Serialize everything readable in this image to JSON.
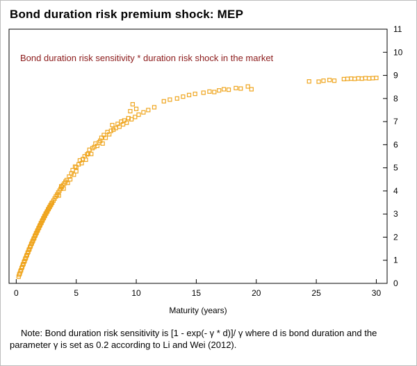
{
  "page": {
    "title": "Bond duration risk premium shock: MEP"
  },
  "note": {
    "text": "Note: Bond duration risk sensitivity is [1 - exp(- γ * d)]/ γ  where d is bond duration and the parameter γ is set as 0.2 according to Li and Wei (2012)."
  },
  "chart_data": {
    "type": "scatter",
    "title": "Bond duration risk premium shock: MEP",
    "annotation": "Bond duration risk sensitivity * duration risk shock in the market",
    "annotation_color": "#8b1a1a",
    "xlabel": "Maturity (years)",
    "ylabel": "",
    "xlim": [
      -0.6,
      30.9
    ],
    "ylim": [
      0,
      11
    ],
    "x_ticks": [
      0,
      5,
      10,
      15,
      20,
      25,
      30
    ],
    "y_ticks": [
      0,
      1,
      2,
      3,
      4,
      5,
      6,
      7,
      8,
      9,
      10,
      11
    ],
    "grid": false,
    "legend": "none",
    "marker": "open-square",
    "marker_color": "#efa51e",
    "axis_color": "#000000",
    "points": [
      [
        0.2,
        0.29
      ],
      [
        0.3,
        0.43
      ],
      [
        0.4,
        0.57
      ],
      [
        0.5,
        0.71
      ],
      [
        0.6,
        0.84
      ],
      [
        0.7,
        0.97
      ],
      [
        0.8,
        1.1
      ],
      [
        0.9,
        1.23
      ],
      [
        1.0,
        1.36
      ],
      [
        1.1,
        1.48
      ],
      [
        1.2,
        1.61
      ],
      [
        1.3,
        1.73
      ],
      [
        1.4,
        1.85
      ],
      [
        1.5,
        1.96
      ],
      [
        1.6,
        2.08
      ],
      [
        1.7,
        2.19
      ],
      [
        1.8,
        2.3
      ],
      [
        1.9,
        2.41
      ],
      [
        2.0,
        2.52
      ],
      [
        2.1,
        2.62
      ],
      [
        2.2,
        2.73
      ],
      [
        2.3,
        2.83
      ],
      [
        2.4,
        2.93
      ],
      [
        2.5,
        3.03
      ],
      [
        2.6,
        3.12
      ],
      [
        2.7,
        3.22
      ],
      [
        2.8,
        3.31
      ],
      [
        2.9,
        3.4
      ],
      [
        3.0,
        3.49
      ],
      [
        0.25,
        0.38
      ],
      [
        0.35,
        0.52
      ],
      [
        0.45,
        0.66
      ],
      [
        0.55,
        0.8
      ],
      [
        0.65,
        0.93
      ],
      [
        0.75,
        1.06
      ],
      [
        0.85,
        1.19
      ],
      [
        0.95,
        1.32
      ],
      [
        1.05,
        1.45
      ],
      [
        1.15,
        1.57
      ],
      [
        1.25,
        1.7
      ],
      [
        1.35,
        1.81
      ],
      [
        1.45,
        1.93
      ],
      [
        1.55,
        2.05
      ],
      [
        1.65,
        2.16
      ],
      [
        1.75,
        2.27
      ],
      [
        1.85,
        2.38
      ],
      [
        1.95,
        2.49
      ],
      [
        2.05,
        2.6
      ],
      [
        2.15,
        2.7
      ],
      [
        2.25,
        2.81
      ],
      [
        2.35,
        2.91
      ],
      [
        2.45,
        3.01
      ],
      [
        2.55,
        3.1
      ],
      [
        2.65,
        3.2
      ],
      [
        2.75,
        3.29
      ],
      [
        2.85,
        3.38
      ],
      [
        2.95,
        3.47
      ],
      [
        3.1,
        3.58
      ],
      [
        3.2,
        3.67
      ],
      [
        3.3,
        3.76
      ],
      [
        3.4,
        3.84
      ],
      [
        3.5,
        3.93
      ],
      [
        3.6,
        4.01
      ],
      [
        3.7,
        4.09
      ],
      [
        3.8,
        4.17
      ],
      [
        3.9,
        4.25
      ],
      [
        4.0,
        4.32
      ],
      [
        3.55,
        3.8
      ],
      [
        3.75,
        4.2
      ],
      [
        3.95,
        4.1
      ],
      [
        4.1,
        4.4
      ],
      [
        4.2,
        4.47
      ],
      [
        4.3,
        4.35
      ],
      [
        4.4,
        4.62
      ],
      [
        4.5,
        4.5
      ],
      [
        4.6,
        4.76
      ],
      [
        4.7,
        4.9
      ],
      [
        4.8,
        4.7
      ],
      [
        4.9,
        5.05
      ],
      [
        5.0,
        5.03
      ],
      [
        5.0,
        4.85
      ],
      [
        5.2,
        5.15
      ],
      [
        5.3,
        5.32
      ],
      [
        5.45,
        5.2
      ],
      [
        5.55,
        5.38
      ],
      [
        5.7,
        5.5
      ],
      [
        5.8,
        5.35
      ],
      [
        5.9,
        5.58
      ],
      [
        6.0,
        5.62
      ],
      [
        6.1,
        5.78
      ],
      [
        6.25,
        5.6
      ],
      [
        6.35,
        5.85
      ],
      [
        6.5,
        5.9
      ],
      [
        6.6,
        6.05
      ],
      [
        6.75,
        5.95
      ],
      [
        6.9,
        6.1
      ],
      [
        7.0,
        6.17
      ],
      [
        7.1,
        6.3
      ],
      [
        7.2,
        6.05
      ],
      [
        7.3,
        6.42
      ],
      [
        7.45,
        6.3
      ],
      [
        7.6,
        6.55
      ],
      [
        7.75,
        6.45
      ],
      [
        7.9,
        6.6
      ],
      [
        8.0,
        6.85
      ],
      [
        8.1,
        6.65
      ],
      [
        8.3,
        6.72
      ],
      [
        8.45,
        6.9
      ],
      [
        8.6,
        6.78
      ],
      [
        8.75,
        7.0
      ],
      [
        8.9,
        6.88
      ],
      [
        9.0,
        7.05
      ],
      [
        9.2,
        6.95
      ],
      [
        9.35,
        7.15
      ],
      [
        9.5,
        7.45
      ],
      [
        9.6,
        7.1
      ],
      [
        9.7,
        7.75
      ],
      [
        9.9,
        7.2
      ],
      [
        10.0,
        7.55
      ],
      [
        10.2,
        7.3
      ],
      [
        10.6,
        7.4
      ],
      [
        11.0,
        7.5
      ],
      [
        11.5,
        7.62
      ],
      [
        12.3,
        7.88
      ],
      [
        12.8,
        7.95
      ],
      [
        13.4,
        8.0
      ],
      [
        13.9,
        8.08
      ],
      [
        14.4,
        8.15
      ],
      [
        14.9,
        8.2
      ],
      [
        15.6,
        8.25
      ],
      [
        16.1,
        8.3
      ],
      [
        16.5,
        8.28
      ],
      [
        16.9,
        8.35
      ],
      [
        17.3,
        8.4
      ],
      [
        17.7,
        8.38
      ],
      [
        18.3,
        8.45
      ],
      [
        18.7,
        8.43
      ],
      [
        19.3,
        8.52
      ],
      [
        19.6,
        8.4
      ],
      [
        24.4,
        8.74
      ],
      [
        25.2,
        8.73
      ],
      [
        25.6,
        8.77
      ],
      [
        26.1,
        8.8
      ],
      [
        26.5,
        8.77
      ],
      [
        27.3,
        8.84
      ],
      [
        27.6,
        8.85
      ],
      [
        27.9,
        8.86
      ],
      [
        28.2,
        8.85
      ],
      [
        28.5,
        8.87
      ],
      [
        28.8,
        8.86
      ],
      [
        29.1,
        8.88
      ],
      [
        29.4,
        8.87
      ],
      [
        29.7,
        8.88
      ],
      [
        30.0,
        8.89
      ]
    ]
  }
}
